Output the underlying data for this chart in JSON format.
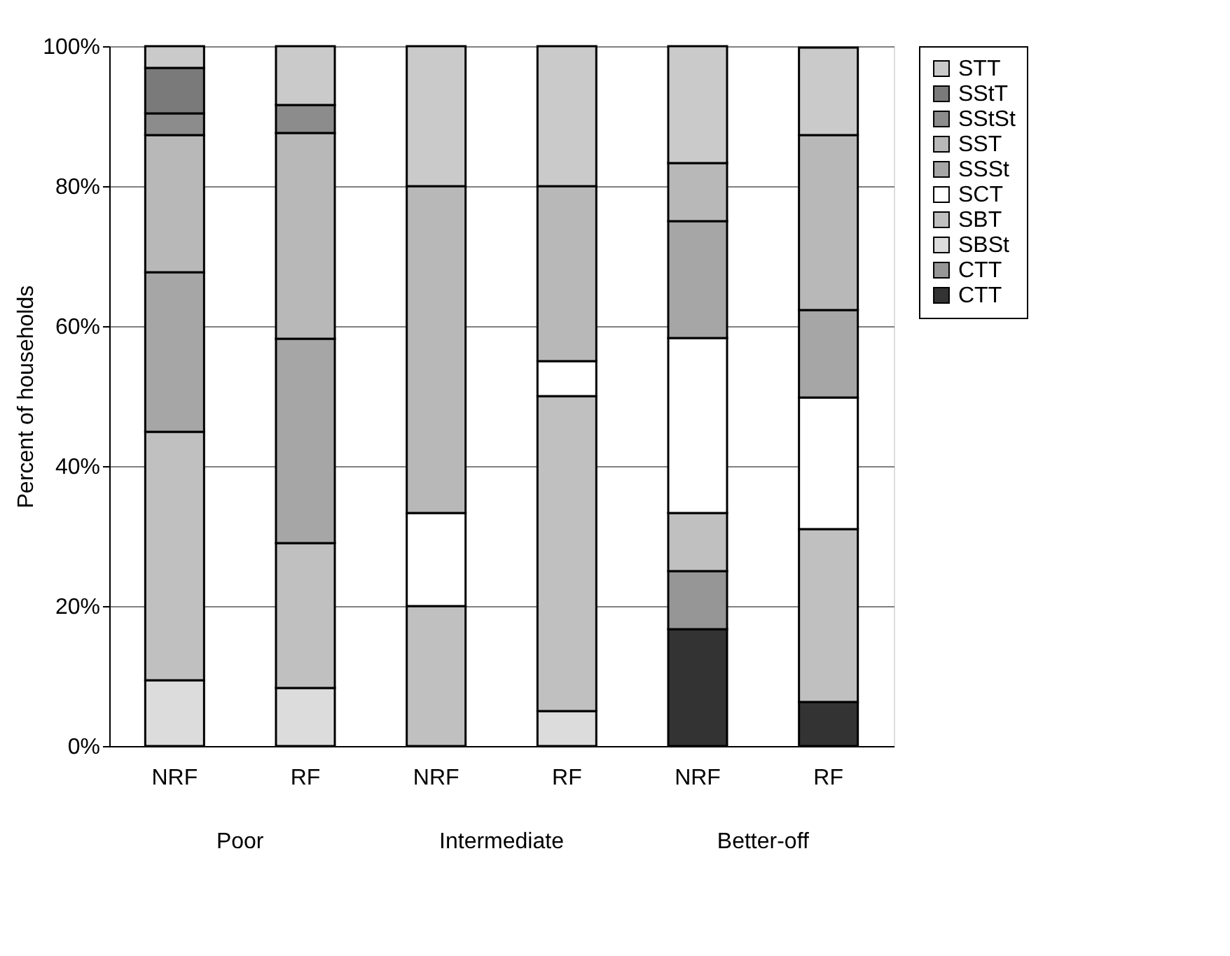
{
  "chart_data": {
    "type": "bar",
    "stacked": true,
    "ylabel": "Percent of households",
    "categories": [
      "NRF",
      "RF",
      "NRF",
      "RF",
      "NRF",
      "RF"
    ],
    "annotations": [
      "Poor",
      "Intermediate",
      "Better-off"
    ],
    "series": [
      {
        "name": "CTT",
        "color": "#333333",
        "values": [
          0,
          0,
          0,
          0,
          16.7,
          6.3
        ]
      },
      {
        "name": "CTT",
        "color": "#969696",
        "values": [
          0,
          0,
          0,
          0,
          8.3,
          0
        ]
      },
      {
        "name": "SBSt",
        "color": "#dcdcdc",
        "values": [
          9.4,
          8.3,
          0,
          5,
          0,
          0
        ]
      },
      {
        "name": "SBT",
        "color": "#c0c0c0",
        "values": [
          35.5,
          20.7,
          20,
          45,
          8.3,
          24.7
        ]
      },
      {
        "name": "SCT",
        "color": "#ffffff",
        "values": [
          0,
          0,
          13.3,
          5,
          25,
          18.8
        ]
      },
      {
        "name": "SSSt",
        "color": "#a6a6a6",
        "values": [
          22.8,
          29.2,
          0,
          0,
          16.7,
          12.5
        ]
      },
      {
        "name": "SST",
        "color": "#b8b8b8",
        "values": [
          19.6,
          29.4,
          46.7,
          25,
          8.3,
          25
        ]
      },
      {
        "name": "SStSt",
        "color": "#8c8c8c",
        "values": [
          3.1,
          4.0,
          0,
          0,
          0,
          0
        ]
      },
      {
        "name": "SStT",
        "color": "#7a7a7a",
        "values": [
          6.5,
          0,
          0,
          0,
          0,
          0
        ]
      },
      {
        "name": "STT",
        "color": "#cacaca",
        "values": [
          3.1,
          8.4,
          20,
          20,
          16.7,
          12.5
        ]
      }
    ],
    "ylim": [
      0,
      100
    ],
    "yticks": [
      {
        "value": 0,
        "label": "0%"
      },
      {
        "value": 20,
        "label": "20%"
      },
      {
        "value": 40,
        "label": "40%"
      },
      {
        "value": 60,
        "label": "60%"
      },
      {
        "value": 80,
        "label": "80%"
      },
      {
        "value": 100,
        "label": "100%"
      }
    ],
    "grid": "y",
    "legend": "right"
  }
}
